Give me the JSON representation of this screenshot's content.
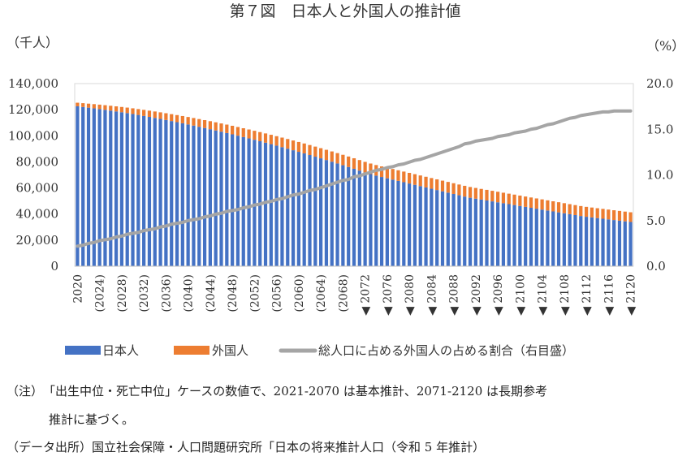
{
  "chart_data": {
    "type": "bar",
    "title": "第７図　日本人と外国人の推計値",
    "ylabel_left": "（千人）",
    "ylabel_right": "（%）",
    "ylim_left": [
      0,
      140000
    ],
    "ylim_right": [
      0,
      20
    ],
    "yticks_left": [
      "0",
      "20,000",
      "40,000",
      "60,000",
      "80,000",
      "100,000",
      "120,000",
      "140,000"
    ],
    "yticks_right": [
      "0.0",
      "5.0",
      "10.0",
      "15.0",
      "20.0"
    ],
    "xtick_labels": [
      "2020",
      "(2024)",
      "(2028)",
      "(2032)",
      "(2036)",
      "(2040)",
      "(2044)",
      "(2048)",
      "(2052)",
      "(2056)",
      "(2060)",
      "(2064)",
      "(2068)",
      "◀ 2072",
      "◀ 2076",
      "◀ 2080",
      "◀ 2084",
      "◀ 2088",
      "◀ 2092",
      "◀ 2096",
      "◀ 2100",
      "◀ 2104",
      "◀ 2108",
      "◀ 2112",
      "◀ 2116",
      "◀ 2120"
    ],
    "stacked": true,
    "grid": false,
    "legend_position": "bottom",
    "years": [
      2020,
      2021,
      2022,
      2023,
      2024,
      2025,
      2026,
      2027,
      2028,
      2029,
      2030,
      2031,
      2032,
      2033,
      2034,
      2035,
      2036,
      2037,
      2038,
      2039,
      2040,
      2041,
      2042,
      2043,
      2044,
      2045,
      2046,
      2047,
      2048,
      2049,
      2050,
      2051,
      2052,
      2053,
      2054,
      2055,
      2056,
      2057,
      2058,
      2059,
      2060,
      2061,
      2062,
      2063,
      2064,
      2065,
      2066,
      2067,
      2068,
      2069,
      2070,
      2071,
      2072,
      2073,
      2074,
      2075,
      2076,
      2077,
      2078,
      2079,
      2080,
      2081,
      2082,
      2083,
      2084,
      2085,
      2086,
      2087,
      2088,
      2089,
      2090,
      2091,
      2092,
      2093,
      2094,
      2095,
      2096,
      2097,
      2098,
      2099,
      2100,
      2101,
      2102,
      2103,
      2104,
      2105,
      2106,
      2107,
      2108,
      2109,
      2110,
      2111,
      2112,
      2113,
      2114,
      2115,
      2116,
      2117,
      2118,
      2119,
      2120
    ],
    "series": [
      {
        "name": "日本人",
        "kind": "bar",
        "color": "#4472C4",
        "values": [
          122600,
          122076,
          121541,
          121000,
          120440,
          119863,
          119270,
          118661,
          118036,
          117394,
          116700,
          115973,
          115230,
          114473,
          113700,
          112909,
          112100,
          111273,
          110430,
          109573,
          108700,
          107809,
          106900,
          105973,
          105030,
          104073,
          103100,
          102109,
          101100,
          100073,
          99030,
          97973,
          96900,
          95809,
          94700,
          93573,
          92430,
          91273,
          90100,
          88909,
          87700,
          86473,
          85230,
          83973,
          82700,
          81409,
          80100,
          78773,
          77430,
          76073,
          74700,
          73309,
          71900,
          70614,
          69450,
          68400,
          67400,
          66400,
          65400,
          64400,
          63400,
          62400,
          61400,
          60400,
          59400,
          58400,
          57400,
          56400,
          55400,
          54400,
          53400,
          52500,
          51800,
          51100,
          50400,
          49700,
          49000,
          48300,
          47600,
          46900,
          46200,
          45500,
          44800,
          44100,
          43400,
          42700,
          42000,
          41300,
          40600,
          39900,
          39200,
          38500,
          37900,
          37400,
          36900,
          36400,
          35900,
          35400,
          34900,
          34400,
          33900
        ]
      },
      {
        "name": "外国人",
        "kind": "bar",
        "color": "#ED7D31",
        "values": [
          2747,
          2920,
          3090,
          3258,
          3423,
          3585,
          3744,
          3901,
          4054,
          4205,
          4354,
          4499,
          4642,
          4783,
          4920,
          5055,
          5187,
          5316,
          5443,
          5567,
          5688,
          5807,
          5923,
          6036,
          6146,
          6254,
          6359,
          6462,
          6561,
          6658,
          6753,
          6844,
          6933,
          7020,
          7103,
          7184,
          7262,
          7338,
          7410,
          7480,
          7548,
          7612,
          7674,
          7733,
          7790,
          7843,
          7894,
          7943,
          7988,
          8031,
          8071,
          8084,
          8095,
          8104,
          8113,
          8120,
          8128,
          8136,
          8144,
          8152,
          8160,
          8168,
          8176,
          8184,
          8192,
          8200,
          8208,
          8216,
          8224,
          8232,
          8240,
          8230,
          8200,
          8170,
          8140,
          8110,
          8080,
          8050,
          8020,
          7990,
          7960,
          7930,
          7900,
          7870,
          7840,
          7810,
          7780,
          7750,
          7720,
          7690,
          7660,
          7630,
          7610,
          7590,
          7570,
          7550,
          7530,
          7510,
          7490,
          7470,
          7450
        ]
      },
      {
        "name": "総人口に占める外国人の占める割合（右目盛）",
        "kind": "line",
        "axis": "right",
        "color": "#A5A5A5",
        "values": [
          2.2,
          2.3,
          2.5,
          2.6,
          2.8,
          2.9,
          3.0,
          3.2,
          3.3,
          3.5,
          3.6,
          3.7,
          3.9,
          4.0,
          4.1,
          4.3,
          4.4,
          4.6,
          4.7,
          4.8,
          5.0,
          5.1,
          5.2,
          5.4,
          5.5,
          5.7,
          5.8,
          6.0,
          6.1,
          6.2,
          6.4,
          6.5,
          6.7,
          6.8,
          7.0,
          7.1,
          7.3,
          7.4,
          7.6,
          7.8,
          7.9,
          8.1,
          8.3,
          8.4,
          8.6,
          8.8,
          9.0,
          9.2,
          9.4,
          9.5,
          9.8,
          9.9,
          10.1,
          10.3,
          10.5,
          10.6,
          10.8,
          10.9,
          11.1,
          11.2,
          11.4,
          11.6,
          11.7,
          11.9,
          12.1,
          12.3,
          12.5,
          12.7,
          12.9,
          13.1,
          13.4,
          13.5,
          13.7,
          13.8,
          13.9,
          14.0,
          14.2,
          14.3,
          14.4,
          14.6,
          14.7,
          14.8,
          15.0,
          15.1,
          15.3,
          15.5,
          15.6,
          15.8,
          16.0,
          16.2,
          16.3,
          16.5,
          16.6,
          16.7,
          16.8,
          16.9,
          16.9,
          17.0,
          17.0,
          17.0,
          17.0
        ]
      }
    ]
  },
  "notes": {
    "note1_line1": "（注）　「出生中位・死亡中位」ケースの数値で、2021-2070 は基本推計、2071-2120 は長期参考",
    "note1_line2": "推計に基づく。",
    "source": "（データ出所）国立社会保障・人口問題研究所「日本の将来推計人口（令和 5 年推計）"
  }
}
